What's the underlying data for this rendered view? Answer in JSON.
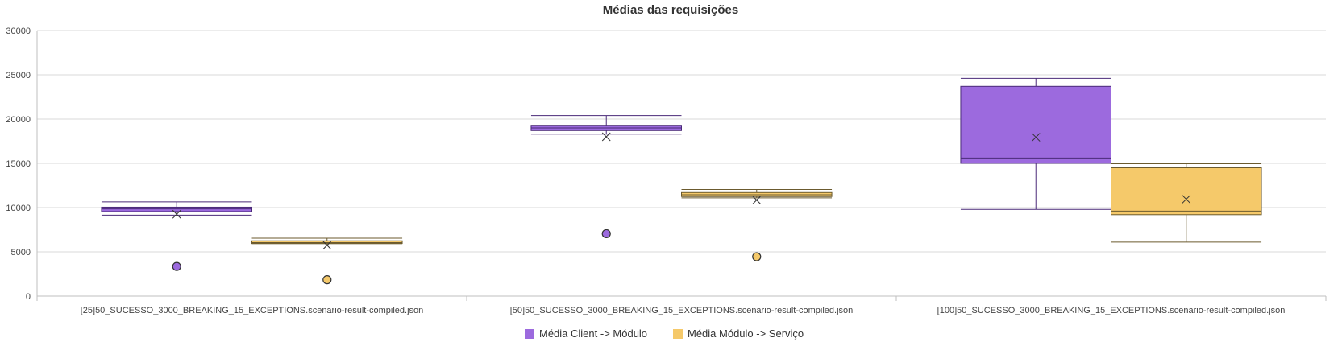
{
  "chart_data": {
    "type": "boxplot",
    "title": "Médias das requisições",
    "xlabel": "",
    "ylabel": "",
    "ylim": [
      0,
      30000
    ],
    "yticks": [
      0,
      5000,
      10000,
      15000,
      20000,
      25000,
      30000
    ],
    "grid": true,
    "legend_position": "bottom",
    "categories": [
      "[25]50_SUCESSO_3000_BREAKING_15_EXCEPTIONS.scenario-result-compiled.json",
      "[50]50_SUCESSO_3000_BREAKING_15_EXCEPTIONS.scenario-result-compiled.json",
      "[100]50_SUCESSO_3000_BREAKING_15_EXCEPTIONS.scenario-result-compiled.json"
    ],
    "series": [
      {
        "name": "Média Client -> Módulo",
        "color": "#9c6ade",
        "stroke": "#4a2a78",
        "boxes": [
          {
            "min": 9150,
            "q1": 9550,
            "median": 9850,
            "q3": 10050,
            "max": 10650,
            "mean": 9250,
            "outliers": [
              3350
            ]
          },
          {
            "min": 18300,
            "q1": 18700,
            "median": 19000,
            "q3": 19300,
            "max": 20400,
            "mean": 18000,
            "outliers": [
              7050
            ]
          },
          {
            "min": 9800,
            "q1": 15000,
            "median": 15600,
            "q3": 23700,
            "max": 24600,
            "mean": 17950,
            "outliers": []
          }
        ]
      },
      {
        "name": "Média Módulo -> Serviço",
        "color": "#f5c96a",
        "stroke": "#6b5a2e",
        "boxes": [
          {
            "min": 5800,
            "q1": 5950,
            "median": 6050,
            "q3": 6250,
            "max": 6550,
            "mean": 5750,
            "outliers": [
              1850
            ]
          },
          {
            "min": 11100,
            "q1": 11250,
            "median": 11450,
            "q3": 11700,
            "max": 12050,
            "mean": 10850,
            "outliers": [
              4450
            ]
          },
          {
            "min": 6100,
            "q1": 9200,
            "median": 9600,
            "q3": 14500,
            "max": 14950,
            "mean": 10950,
            "outliers": []
          }
        ]
      }
    ]
  }
}
